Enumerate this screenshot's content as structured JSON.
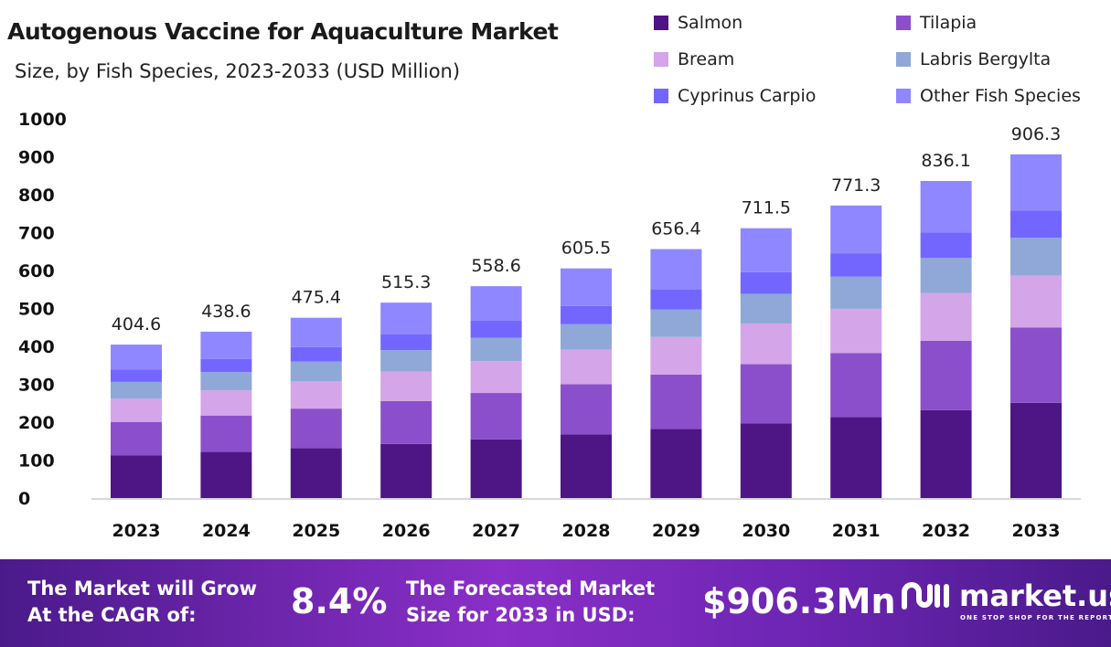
{
  "chart_data": {
    "type": "bar",
    "stacked": true,
    "title": "Autogenous Vaccine for Aquaculture Market",
    "subtitle": "Size, by Fish Species, 2023-2033 (USD Million)",
    "categories": [
      "2023",
      "2024",
      "2025",
      "2026",
      "2027",
      "2028",
      "2029",
      "2030",
      "2031",
      "2032",
      "2033"
    ],
    "totals": [
      404.6,
      438.6,
      475.4,
      515.3,
      558.6,
      605.5,
      656.4,
      711.5,
      771.3,
      836.1,
      906.3
    ],
    "total_labels": [
      "404.6",
      "438.6",
      "475.4",
      "515.3",
      "558.6",
      "605.5",
      "656.4",
      "711.5",
      "771.3",
      "836.1",
      "906.3"
    ],
    "series": [
      {
        "name": "Salmon",
        "color": "#4e1585",
        "values": [
          112.1,
          121.5,
          131.7,
          142.7,
          154.7,
          167.7,
          181.8,
          197.1,
          213.6,
          231.6,
          251.0
        ]
      },
      {
        "name": "Tilapia",
        "color": "#8b4fcb",
        "values": [
          88.6,
          96.1,
          104.1,
          112.9,
          122.3,
          132.6,
          143.8,
          155.8,
          168.9,
          183.1,
          198.5
        ]
      },
      {
        "name": "Bream",
        "color": "#d4a5e8",
        "values": [
          61.1,
          66.2,
          71.8,
          77.8,
          84.3,
          91.4,
          99.1,
          107.4,
          116.5,
          126.3,
          136.9
        ]
      },
      {
        "name": "Labris Bergylta",
        "color": "#8fa8d8",
        "values": [
          44.5,
          48.2,
          52.3,
          56.7,
          61.4,
          66.6,
          72.2,
          78.3,
          84.8,
          92.0,
          99.7
        ]
      },
      {
        "name": "Cyprinus Carpio",
        "color": "#7366ff",
        "values": [
          32.4,
          35.1,
          38.0,
          41.2,
          44.7,
          48.4,
          52.5,
          56.9,
          61.7,
          66.9,
          72.5
        ]
      },
      {
        "name": "Other Fish Species",
        "color": "#8f87ff",
        "values": [
          65.9,
          71.5,
          77.5,
          84.0,
          91.2,
          98.8,
          107.0,
          116.0,
          125.8,
          136.2,
          147.7
        ]
      }
    ],
    "ylim": [
      0,
      1000
    ],
    "yticks": [
      0,
      100,
      200,
      300,
      400,
      500,
      600,
      700,
      800,
      900,
      1000
    ],
    "grid": false,
    "legend_position": "top-right"
  },
  "footer": {
    "cagr_label_1": "The Market will Grow",
    "cagr_label_2": "At the CAGR of:",
    "cagr_value": "8.4%",
    "forecast_label_1": "The Forecasted Market",
    "forecast_label_2": "Size for 2033 in USD:",
    "forecast_value": "$906.3Mn",
    "logo_name": "market.us",
    "logo_tagline": "ONE STOP SHOP FOR THE REPORTS"
  }
}
